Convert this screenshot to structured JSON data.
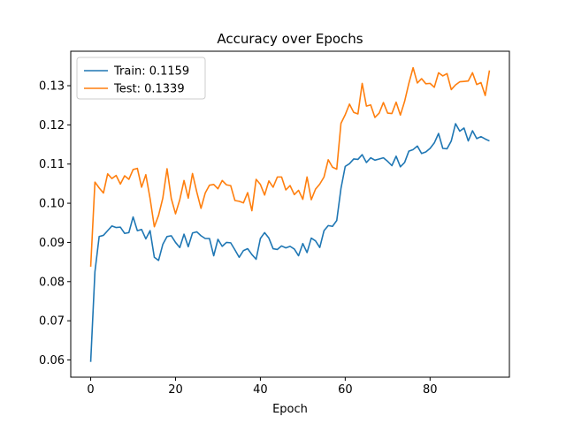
{
  "chart_data": {
    "type": "line",
    "title": "Accuracy over Epochs",
    "xlabel": "Epoch",
    "ylabel": "",
    "xlim": [
      -4.7,
      98.7
    ],
    "ylim": [
      0.0556,
      0.1388
    ],
    "xticks": [
      0,
      20,
      40,
      60,
      80
    ],
    "yticks": [
      0.06,
      0.07,
      0.08,
      0.09,
      0.1,
      0.11,
      0.12,
      0.13
    ],
    "ytick_labels": [
      "0.06",
      "0.07",
      "0.08",
      "0.09",
      "0.10",
      "0.11",
      "0.12",
      "0.13"
    ],
    "legend_position": "top-left",
    "grid": false,
    "series": [
      {
        "name": "Train: 0.1159",
        "color": "#1f77b4",
        "values": [
          0.0595,
          0.0825,
          0.0915,
          0.0918,
          0.093,
          0.0942,
          0.0938,
          0.0939,
          0.0923,
          0.0925,
          0.0965,
          0.093,
          0.0933,
          0.0909,
          0.093,
          0.0862,
          0.0854,
          0.0895,
          0.0915,
          0.0917,
          0.09,
          0.0887,
          0.0921,
          0.0889,
          0.0924,
          0.0927,
          0.0917,
          0.091,
          0.091,
          0.0866,
          0.0908,
          0.089,
          0.09,
          0.0899,
          0.0881,
          0.0862,
          0.0879,
          0.0884,
          0.0869,
          0.0857,
          0.091,
          0.0925,
          0.0911,
          0.0884,
          0.0882,
          0.0891,
          0.0886,
          0.089,
          0.0883,
          0.0866,
          0.0897,
          0.0874,
          0.0911,
          0.0904,
          0.0887,
          0.093,
          0.0943,
          0.0941,
          0.0956,
          0.1038,
          0.1094,
          0.1101,
          0.1113,
          0.1112,
          0.1124,
          0.1104,
          0.1116,
          0.111,
          0.1113,
          0.1116,
          0.1107,
          0.1096,
          0.112,
          0.1093,
          0.1104,
          0.1133,
          0.1137,
          0.1146,
          0.1127,
          0.1131,
          0.114,
          0.1154,
          0.1178,
          0.114,
          0.1139,
          0.1159,
          0.1203,
          0.1184,
          0.1192,
          0.1159,
          0.1185,
          0.1165,
          0.117,
          0.1164,
          0.1159
        ]
      },
      {
        "name": "Test: 0.1339",
        "color": "#ff7f0e",
        "values": [
          0.0838,
          0.1054,
          0.1039,
          0.1026,
          0.1075,
          0.1063,
          0.1071,
          0.1049,
          0.107,
          0.1061,
          0.1086,
          0.1089,
          0.1041,
          0.1073,
          0.1012,
          0.094,
          0.0969,
          0.1013,
          0.1088,
          0.1012,
          0.0973,
          0.1009,
          0.1058,
          0.1013,
          0.1076,
          0.1029,
          0.0987,
          0.1026,
          0.1046,
          0.1048,
          0.1037,
          0.1058,
          0.1047,
          0.1045,
          0.1007,
          0.1005,
          0.1001,
          0.1027,
          0.0981,
          0.1061,
          0.1048,
          0.1021,
          0.1057,
          0.1041,
          0.1067,
          0.1067,
          0.1034,
          0.1045,
          0.1022,
          0.1033,
          0.101,
          0.1067,
          0.1009,
          0.1036,
          0.1049,
          0.1067,
          0.1111,
          0.1092,
          0.1087,
          0.1204,
          0.1226,
          0.1253,
          0.1232,
          0.1228,
          0.1306,
          0.1248,
          0.1251,
          0.1219,
          0.123,
          0.1257,
          0.123,
          0.1229,
          0.1258,
          0.1225,
          0.126,
          0.1306,
          0.1346,
          0.1307,
          0.1318,
          0.1305,
          0.1306,
          0.1296,
          0.1333,
          0.1325,
          0.1331,
          0.129,
          0.1302,
          0.131,
          0.1311,
          0.1312,
          0.1333,
          0.1303,
          0.1308,
          0.1275,
          0.1339
        ]
      }
    ]
  }
}
